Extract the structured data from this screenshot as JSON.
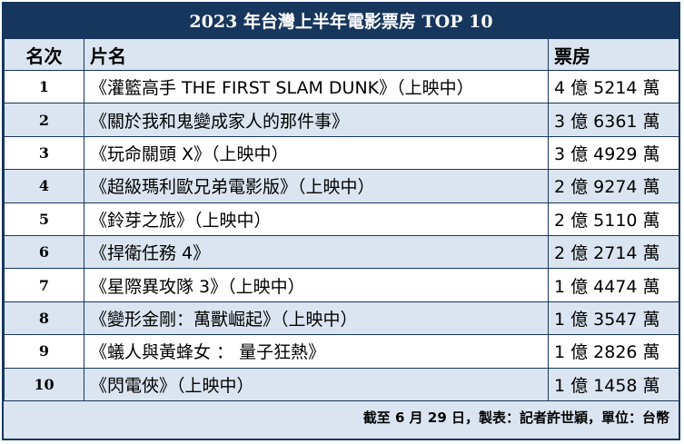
{
  "title": "2023 年台灣上半年電影票房 TOP  10",
  "headers": {
    "rank": "名次",
    "title": "片名",
    "box_office": "票房"
  },
  "rows": [
    {
      "rank": "1",
      "title": "《灌籃高手 THE FIRST SLAM DUNK》（上映中）",
      "box_office": "4 億 5214 萬"
    },
    {
      "rank": "2",
      "title": "《關於我和鬼變成家人的那件事》",
      "box_office": "3 億 6361 萬"
    },
    {
      "rank": "3",
      "title": "《玩命關頭 X》（上映中）",
      "box_office": "3 億 4929 萬"
    },
    {
      "rank": "4",
      "title": "《超級瑪利歐兄弟電影版》（上映中）",
      "box_office": "2 億 9274 萬"
    },
    {
      "rank": "5",
      "title": "《鈴芽之旅》（上映中）",
      "box_office": "2 億 5110 萬"
    },
    {
      "rank": "6",
      "title": "《捍衛任務 4》",
      "box_office": "2 億 2714 萬"
    },
    {
      "rank": "7",
      "title": "《星際異攻隊 3》（上映中）",
      "box_office": "1 億 4474 萬"
    },
    {
      "rank": "8",
      "title": "《變形金剛：萬獸崛起》（上映中）",
      "box_office": "1 億 3547 萬"
    },
    {
      "rank": "9",
      "title": "《蟻人與黃蜂女 ： 量子狂熱》",
      "box_office": "1 億 2826 萬"
    },
    {
      "rank": "10",
      "title": "《閃電俠》（上映中）",
      "box_office": "1 億 1458 萬"
    }
  ],
  "footer": "截至 6 月 29 日，製表：記者許世穎，單位：台幣",
  "colors": {
    "header_bg": "#17365d",
    "row_alt": "#dbe5f1",
    "row": "#ffffff"
  }
}
